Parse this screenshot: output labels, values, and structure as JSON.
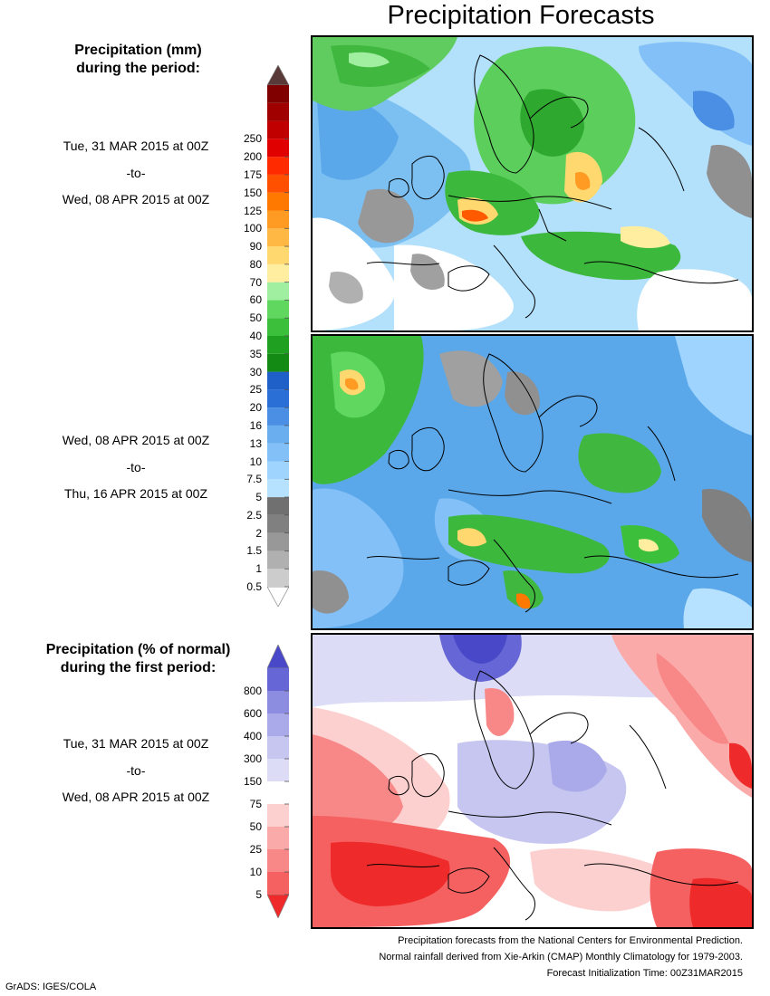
{
  "title": "Precipitation Forecasts",
  "legend_mm": {
    "title_line1": "Precipitation (mm)",
    "title_line2": "during the period:",
    "colors": [
      "#ffffff",
      "#cccccc",
      "#b0b0b0",
      "#989898",
      "#808080",
      "#707070",
      "#b7e2ff",
      "#9fd4ff",
      "#83c0f7",
      "#6aaef0",
      "#4a8fe3",
      "#2a6fd6",
      "#1e5fc8",
      "#138a13",
      "#20a020",
      "#3cc03c",
      "#60d860",
      "#a0eea0",
      "#ffeea0",
      "#ffd870",
      "#ffb844",
      "#ff9a22",
      "#ff7800",
      "#ff5000",
      "#ff2a00",
      "#e00000",
      "#c00000",
      "#a00000",
      "#800000",
      "#5a3a38"
    ],
    "ticks": [
      "0.5",
      "1",
      "1.5",
      "2",
      "2.5",
      "5",
      "7.5",
      "10",
      "13",
      "16",
      "20",
      "25",
      "30",
      "35",
      "40",
      "50",
      "60",
      "70",
      "80",
      "90",
      "100",
      "125",
      "150",
      "175",
      "200",
      "250"
    ]
  },
  "legend_pct": {
    "title_line1": "Precipitation (% of normal)",
    "title_line2": "during the first period:",
    "colors": [
      "#ee2a2a",
      "#f56060",
      "#f88888",
      "#fbaaaa",
      "#fdd0d0",
      "#ffffff",
      "#dcdcf6",
      "#c6c6f0",
      "#aaaaea",
      "#8c8ce0",
      "#6666d6",
      "#4848c8"
    ],
    "ticks": [
      "5",
      "10",
      "25",
      "50",
      "75",
      "150",
      "300",
      "400",
      "600",
      "800"
    ]
  },
  "periods": [
    {
      "start": "Tue, 31 MAR 2015 at 00Z",
      "sep": "-to-",
      "end": "Wed, 08 APR 2015 at 00Z"
    },
    {
      "start": "Wed, 08 APR 2015 at 00Z",
      "sep": "-to-",
      "end": "Thu, 16 APR 2015 at 00Z"
    },
    {
      "start": "Tue, 31 MAR 2015 at 00Z",
      "sep": "-to-",
      "end": "Wed, 08 APR 2015 at 00Z"
    }
  ],
  "footer": {
    "line1": "Precipitation forecasts from the National Centers for Environmental Prediction.",
    "line2": "Normal rainfall derived from Xie-Arkin (CMAP) Monthly Climatology for 1979-2003.",
    "line3": "Forecast Initialization Time: 00Z31MAR2015"
  },
  "credit": "GrADS: IGES/COLA"
}
